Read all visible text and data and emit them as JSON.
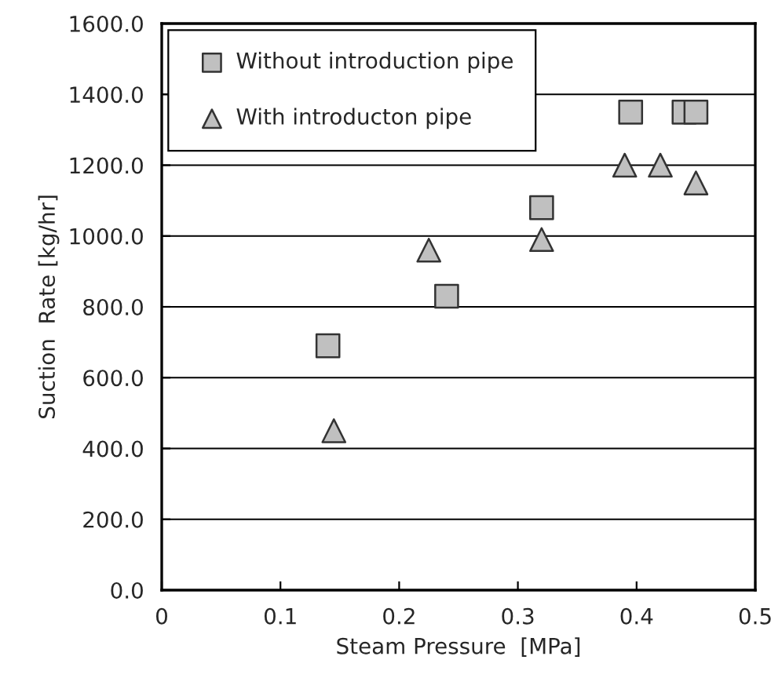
{
  "chart_data": {
    "type": "scatter",
    "xlabel": "Steam Pressure  [MPa]",
    "ylabel": "Suction  Rate [kg/hr]",
    "xlim": [
      0,
      0.5
    ],
    "xticks": [
      0,
      0.1,
      0.2,
      0.3,
      0.4,
      0.5
    ],
    "ylim": [
      0,
      1600
    ],
    "yticks": [
      {
        "value": 0,
        "label": "0.0"
      },
      {
        "value": 200,
        "label": "200.0"
      },
      {
        "value": 400,
        "label": "400.0"
      },
      {
        "value": 600,
        "label": "600.0"
      },
      {
        "value": 800,
        "label": "800.0"
      },
      {
        "value": 1000,
        "label": "1000.0"
      },
      {
        "value": 1200,
        "label": "1200.0"
      },
      {
        "value": 1400,
        "label": "1400.0"
      },
      {
        "value": 1600,
        "label": "1600.0"
      }
    ],
    "grid": "y",
    "legend": "top left",
    "series": [
      {
        "name": "Without introduction pipe",
        "color": "#c0c0c0",
        "marker": "square",
        "x": [
          0.14,
          0.24,
          0.32,
          0.395,
          0.44,
          0.45
        ],
        "values": [
          690,
          830,
          1080,
          1350,
          1350,
          1350
        ]
      },
      {
        "name": "With introducton pipe",
        "color": "#c0c0c0",
        "marker": "triangle",
        "x": [
          0.145,
          0.225,
          0.32,
          0.39,
          0.42,
          0.45
        ],
        "values": [
          450,
          960,
          990,
          1200,
          1200,
          1150
        ]
      }
    ]
  }
}
